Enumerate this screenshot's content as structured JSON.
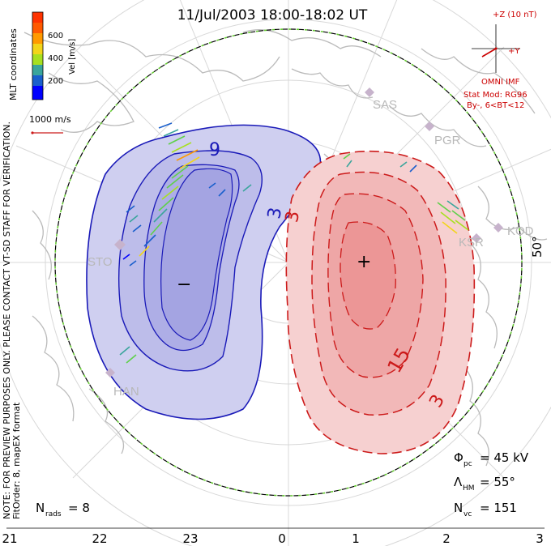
{
  "header": {
    "title": "11/Jul/2003 18:00-18:02 UT"
  },
  "colorbar": {
    "unit_label": "Vel [m/s]",
    "ticks": [
      "600",
      "400",
      "200"
    ],
    "colors": [
      "#0000ff",
      "#1a5fcc",
      "#3aa59c",
      "#5fd04a",
      "#a7e020",
      "#f2d51a",
      "#ff9a00",
      "#ff3300"
    ]
  },
  "side_labels": {
    "coordinates": "MLT coordinates",
    "note": "NOTE: FOR PREVIEW PURPOSES ONLY. PLEASE CONTACT VT-SD STAFF FOR VERIFICATION.",
    "fitorder": "FitOrder: 8, mapEX format"
  },
  "velocity_scale": {
    "label": "1000 m/s"
  },
  "imf_panel": {
    "z_label": "+Z (10 nT)",
    "y_label": "+Y",
    "source": "OMNI IMF",
    "model": "Stat Mod: RG96",
    "condition": "By-, 6<BT<12"
  },
  "stations": [
    "SAS",
    "PGR",
    "KOD",
    "KSR",
    "STO",
    "HAN"
  ],
  "lat_label": "50°",
  "contour_labels": {
    "neg_outer": "3",
    "neg_inner": "9",
    "pos_outer": "3",
    "pos_mid": "15",
    "neg_marker": "−",
    "pos_marker": "+"
  },
  "stats": {
    "phi_pc": "Φ",
    "phi_pc_sub": "pc",
    "phi_pc_value": "= 45 kV",
    "lambda_hm": "Λ",
    "lambda_hm_sub": "HM",
    "lambda_hm_value": "= 55°",
    "n_vc": "N",
    "n_vc_sub": "vc",
    "n_vc_value": "= 151",
    "n_rads": "N",
    "n_rads_sub": "rads",
    "n_rads_value": "= 8"
  },
  "mlt_axis": [
    "21",
    "22",
    "23",
    "0",
    "1",
    "2",
    "3"
  ],
  "accent_colors": {
    "negative_cell": "#1a1ab8",
    "negative_fill": "#c8c8ec",
    "negative_core": "#a8a8e6",
    "positive_cell": "#cc1a1a",
    "positive_fill": "#f6d0d0",
    "positive_core": "#ee9a9a",
    "imf_red": "#cc0000",
    "hm_boundary_green": "#66cc33"
  }
}
